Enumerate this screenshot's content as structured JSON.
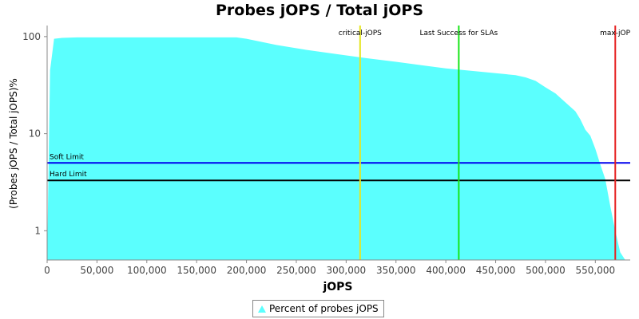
{
  "chart_data": {
    "type": "area",
    "title": "Probes jOPS / Total jOPS",
    "xlabel": "jOPS",
    "ylabel": "(Probes jOPS / Total jOPS)%",
    "xlim": [
      0,
      585000
    ],
    "ylim": [
      0.5,
      130
    ],
    "yscale": "log",
    "x_ticks": [
      0,
      50000,
      100000,
      150000,
      200000,
      250000,
      300000,
      350000,
      400000,
      450000,
      500000,
      550000
    ],
    "x_tick_labels": [
      "0",
      "50,000",
      "100,000",
      "150,000",
      "200,000",
      "250,000",
      "300,000",
      "350,000",
      "400,000",
      "450,000",
      "500,000",
      "550,000"
    ],
    "y_ticks": [
      1,
      10,
      100
    ],
    "y_tick_labels": [
      "1",
      "10",
      "100"
    ],
    "grid": false,
    "legend_position": "bottom",
    "series": [
      {
        "name": "Percent of probes jOPS",
        "color": "#5bfffe",
        "x": [
          0,
          3000,
          7000,
          15000,
          30000,
          60000,
          100000,
          150000,
          190000,
          200000,
          230000,
          260000,
          290000,
          320000,
          350000,
          380000,
          400000,
          420000,
          450000,
          470000,
          480000,
          490000,
          500000,
          510000,
          520000,
          530000,
          535000,
          540000,
          545000,
          550000,
          555000,
          560000,
          565000,
          570000,
          575000,
          580000,
          585000
        ],
        "y": [
          0.5,
          45,
          95,
          97,
          98,
          98,
          98,
          98,
          98,
          95,
          82,
          73,
          66,
          60,
          55,
          50,
          47,
          45,
          42,
          40,
          38,
          35,
          30,
          26,
          21,
          17,
          14,
          11,
          9.5,
          7,
          4.8,
          3.4,
          1.8,
          1.0,
          0.6,
          0.5,
          0.5
        ]
      }
    ],
    "vertical_markers": [
      {
        "label": "critical-jOPS",
        "x": 314000,
        "color": "#e6e620"
      },
      {
        "label": "Last Success for SLAs",
        "x": 413000,
        "color": "#19e619"
      },
      {
        "label": "max-jOP",
        "x": 570000,
        "color": "#e62020"
      }
    ],
    "horizontal_markers": [
      {
        "label": "Soft Limit",
        "y": 5,
        "color": "#0000ee"
      },
      {
        "label": "Hard Limit",
        "y": 3.3,
        "color": "#000000"
      }
    ]
  }
}
